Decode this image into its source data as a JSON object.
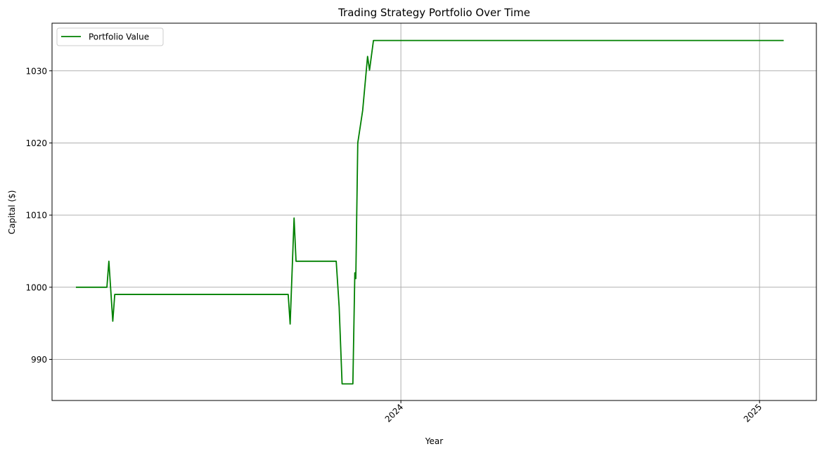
{
  "chart_data": {
    "type": "line",
    "title": "Trading Strategy Portfolio Over Time",
    "xlabel": "Year",
    "ylabel": "Capital ($)",
    "x_axis_type": "date",
    "xlim": [
      "2023-01-10",
      "2025-02-28"
    ],
    "ylim": [
      984.3,
      1036.6
    ],
    "x_ticks": [
      {
        "value": "2024-01-01",
        "label": "2024"
      },
      {
        "value": "2025-01-01",
        "label": "2025"
      }
    ],
    "x_tick_rotation": 45,
    "y_ticks": [
      990,
      1000,
      1010,
      1020,
      1030
    ],
    "grid": true,
    "legend": {
      "placement": "top-left"
    },
    "series": [
      {
        "name": "Portfolio Value",
        "color": "#008000",
        "x": [
          "2023-02-04",
          "2023-03-07",
          "2023-03-09",
          "2023-03-13",
          "2023-03-15",
          "2023-09-08",
          "2023-09-10",
          "2023-09-14",
          "2023-09-16",
          "2023-10-27",
          "2023-10-30",
          "2023-11-02",
          "2023-11-13",
          "2023-11-15",
          "2023-11-16",
          "2023-11-18",
          "2023-11-23",
          "2023-11-28",
          "2023-11-30",
          "2023-12-04",
          "2023-12-05",
          "2025-01-25"
        ],
        "values": [
          1000.0,
          1000.0,
          1003.6,
          995.3,
          999.0,
          999.0,
          994.9,
          1009.6,
          1003.6,
          1003.6,
          997.3,
          986.6,
          986.6,
          1002.0,
          1001.2,
          1020.0,
          1024.5,
          1032.0,
          1030.1,
          1034.2,
          1034.2,
          1034.2
        ]
      }
    ]
  }
}
